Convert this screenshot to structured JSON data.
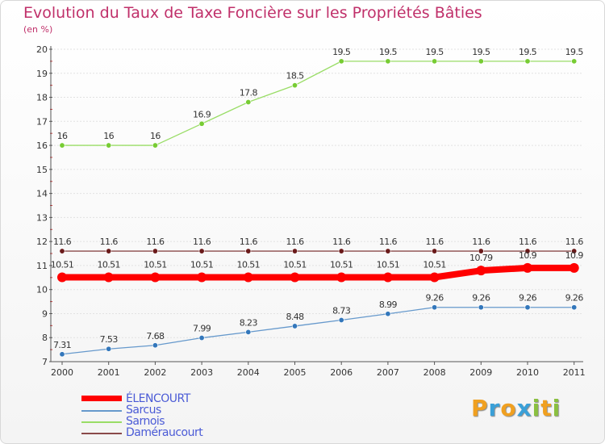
{
  "chart_data": {
    "type": "line",
    "title": "Evolution du Taux de Taxe Foncière sur les Propriétés Bâties",
    "ylabel": "(en %)",
    "xlabel": "",
    "ylim": [
      7,
      20
    ],
    "yticks": [
      "7",
      "8",
      "9",
      "10",
      "11",
      "12",
      "13",
      "14",
      "15",
      "16",
      "17",
      "18",
      "19",
      "20"
    ],
    "categories": [
      "2000",
      "2001",
      "2002",
      "2003",
      "2004",
      "2005",
      "2006",
      "2007",
      "2008",
      "2009",
      "2010",
      "2011"
    ],
    "series": [
      {
        "name": "Sarnois",
        "color": "#99dd66",
        "marker": "#77cc33",
        "values": [
          16,
          16,
          16,
          16.9,
          17.8,
          18.5,
          19.5,
          19.5,
          19.5,
          19.5,
          19.5,
          19.5
        ],
        "labels": [
          "16",
          "16",
          "16",
          "16.9",
          "17.8",
          "18.5",
          "19.5",
          "19.5",
          "19.5",
          "19.5",
          "19.5",
          "19.5"
        ]
      },
      {
        "name": "Daméraucourt",
        "color": "#8a4a4a",
        "marker": "#6a1a1a",
        "values": [
          11.6,
          11.6,
          11.6,
          11.6,
          11.6,
          11.6,
          11.6,
          11.6,
          11.6,
          11.6,
          11.6,
          11.6
        ],
        "labels": [
          "11.6",
          "11.6",
          "11.6",
          "11.6",
          "11.6",
          "11.6",
          "11.6",
          "11.6",
          "11.6",
          "11.6",
          "11.6",
          "11.6"
        ]
      },
      {
        "name": "Sarcus",
        "color": "#6699cc",
        "marker": "#3377bb",
        "values": [
          7.31,
          7.53,
          7.68,
          7.99,
          8.23,
          8.48,
          8.73,
          8.99,
          9.26,
          9.26,
          9.26,
          9.26
        ],
        "labels": [
          "7.31",
          "7.53",
          "7.68",
          "7.99",
          "8.23",
          "8.48",
          "8.73",
          "8.99",
          "9.26",
          "9.26",
          "9.26",
          "9.26"
        ]
      },
      {
        "name": "ÉLENCOURT",
        "color": "#ff0000",
        "marker": "#ff0000",
        "values": [
          10.51,
          10.51,
          10.51,
          10.51,
          10.51,
          10.51,
          10.51,
          10.51,
          10.51,
          10.79,
          10.9,
          10.9
        ],
        "labels": [
          "10.51",
          "10.51",
          "10.51",
          "10.51",
          "10.51",
          "10.51",
          "10.51",
          "10.51",
          "10.51",
          "10.79",
          "10.9",
          "10.9"
        ]
      }
    ]
  },
  "legend": [
    {
      "name": "ÉLENCOURT",
      "color": "#ff0000"
    },
    {
      "name": "Sarcus",
      "color": "#6699cc"
    },
    {
      "name": "Sarnois",
      "color": "#99dd66"
    },
    {
      "name": "Daméraucourt",
      "color": "#8a4a4a"
    }
  ],
  "logo": {
    "letters": [
      "P",
      "r",
      "o",
      "x",
      "i",
      "t",
      "i"
    ],
    "colors": [
      "#f0a020",
      "#3aa0d8",
      "#f0a020",
      "#3aa0d8",
      "#8ac040",
      "#f0a020",
      "#8ac040"
    ]
  }
}
